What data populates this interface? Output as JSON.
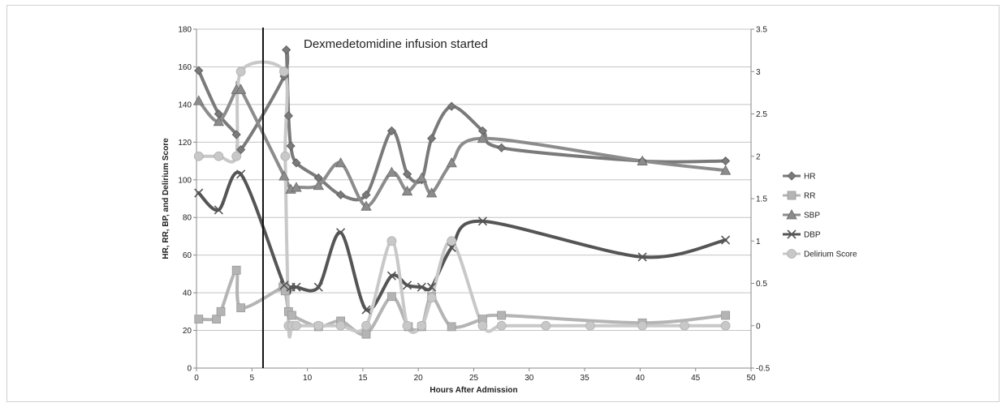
{
  "chart_data": {
    "type": "line",
    "title": "",
    "xlabel": "Hours After Admission",
    "ylabel": "HR, RR, BP, and Delirium Score",
    "xlim": [
      0,
      50
    ],
    "ylim": [
      0,
      180
    ],
    "y2lim": [
      -0.5,
      3.5
    ],
    "x_ticks": [
      "0",
      "5",
      "10",
      "15",
      "20",
      "25",
      "30",
      "35",
      "40",
      "45",
      "50"
    ],
    "y_ticks": [
      "0",
      "20",
      "40",
      "60",
      "80",
      "100",
      "120",
      "140",
      "160",
      "180"
    ],
    "y2_ticks": [
      "-0.5",
      "0",
      "0.5",
      "1",
      "1.5",
      "2",
      "2.5",
      "3",
      "3.5"
    ],
    "grid": "horizontal",
    "legend_position": "right",
    "annotation": {
      "text": "Dexmedetomidine infusion started",
      "x": 6
    },
    "series": [
      {
        "name": "HR",
        "axis": "left",
        "marker": "diamond",
        "color": "#7a7a7a",
        "points": [
          [
            0.2,
            158
          ],
          [
            2,
            135
          ],
          [
            3.6,
            124
          ],
          [
            4,
            116
          ],
          [
            7.9,
            155
          ],
          [
            8.1,
            169
          ],
          [
            8.3,
            134
          ],
          [
            8.5,
            118
          ],
          [
            9,
            109
          ],
          [
            11,
            101
          ],
          [
            13,
            92
          ],
          [
            15.3,
            92
          ],
          [
            17.6,
            126
          ],
          [
            19,
            103
          ],
          [
            20.3,
            100
          ],
          [
            21.2,
            122
          ],
          [
            23,
            139
          ],
          [
            25.8,
            126
          ],
          [
            27.5,
            117
          ],
          [
            40.2,
            110
          ],
          [
            47.7,
            110
          ]
        ]
      },
      {
        "name": "RR",
        "axis": "left",
        "marker": "square",
        "color": "#b4b4b4",
        "points": [
          [
            0.2,
            26
          ],
          [
            1.8,
            26
          ],
          [
            2.2,
            30
          ],
          [
            3.6,
            52
          ],
          [
            4,
            32
          ],
          [
            7.8,
            43
          ],
          [
            8,
            41
          ],
          [
            8.3,
            30
          ],
          [
            8.6,
            28
          ],
          [
            11,
            22
          ],
          [
            13,
            25
          ],
          [
            15.3,
            18
          ],
          [
            17.6,
            38
          ],
          [
            19.1,
            22
          ],
          [
            20.3,
            22
          ],
          [
            21.2,
            38
          ],
          [
            23,
            22
          ],
          [
            25.8,
            26
          ],
          [
            27.5,
            28
          ],
          [
            40.2,
            24
          ],
          [
            47.7,
            28
          ]
        ]
      },
      {
        "name": "SBP",
        "axis": "left",
        "marker": "triangle",
        "color": "#8c8c8c",
        "points": [
          [
            0.2,
            142
          ],
          [
            2,
            131
          ],
          [
            3.6,
            148
          ],
          [
            4,
            148
          ],
          [
            7.9,
            102
          ],
          [
            8.5,
            95
          ],
          [
            9,
            96
          ],
          [
            11,
            97
          ],
          [
            13,
            109
          ],
          [
            15.3,
            86
          ],
          [
            17.6,
            104
          ],
          [
            19,
            94
          ],
          [
            20.3,
            101
          ],
          [
            21.2,
            93
          ],
          [
            23,
            109
          ],
          [
            25.8,
            122
          ],
          [
            40.2,
            110
          ],
          [
            47.7,
            105
          ]
        ]
      },
      {
        "name": "DBP",
        "axis": "left",
        "marker": "x",
        "color": "#555555",
        "points": [
          [
            0.2,
            93
          ],
          [
            2,
            84
          ],
          [
            4,
            103
          ],
          [
            7.9,
            44
          ],
          [
            8.5,
            43
          ],
          [
            9,
            43
          ],
          [
            11,
            43
          ],
          [
            13,
            72
          ],
          [
            15.3,
            31
          ],
          [
            17.6,
            49
          ],
          [
            19,
            44
          ],
          [
            20.3,
            43
          ],
          [
            21.2,
            43
          ],
          [
            23,
            64
          ],
          [
            25.8,
            78
          ],
          [
            40.2,
            59
          ],
          [
            47.7,
            68
          ]
        ]
      },
      {
        "name": "Delirium Score",
        "axis": "right",
        "marker": "circle",
        "color": "#c8c8c8",
        "points": [
          [
            0.2,
            2
          ],
          [
            2,
            2
          ],
          [
            3.6,
            2
          ],
          [
            4,
            3
          ],
          [
            7.9,
            3
          ],
          [
            8,
            2
          ],
          [
            8.3,
            0
          ],
          [
            8.6,
            0
          ],
          [
            9,
            0
          ],
          [
            11,
            0
          ],
          [
            13,
            0
          ],
          [
            15.3,
            0
          ],
          [
            17.6,
            1
          ],
          [
            19,
            0
          ],
          [
            20.3,
            0
          ],
          [
            21.2,
            0.33
          ],
          [
            23,
            1
          ],
          [
            25.8,
            0
          ],
          [
            27.5,
            0
          ],
          [
            31.5,
            0
          ],
          [
            35.5,
            0
          ],
          [
            40.2,
            0
          ],
          [
            44,
            0
          ],
          [
            47.7,
            0
          ]
        ]
      }
    ]
  }
}
